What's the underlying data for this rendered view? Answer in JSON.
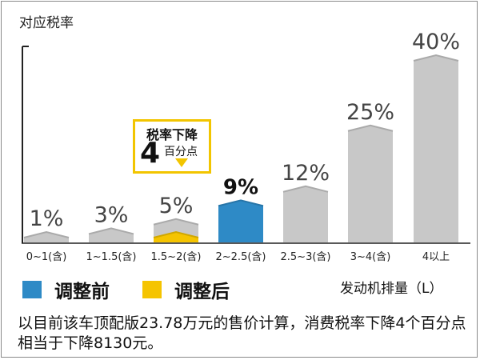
{
  "chart_data": {
    "type": "bar",
    "ylabel": "对应税率",
    "xlabel": "发动机排量（L）",
    "categories": [
      "0~1(含)",
      "1~1.5(含)",
      "1.5~2(含)",
      "2~2.5(含)",
      "2.5~3(含)",
      "3~4(含)",
      "4以上"
    ],
    "value_labels": [
      "1%",
      "3%",
      "5%",
      "9%",
      "12%",
      "25%",
      "40%"
    ],
    "series": [
      {
        "name": "调整前",
        "color": "#2e8ac6",
        "values": [
          1,
          3,
          5,
          9,
          12,
          25,
          40
        ]
      },
      {
        "name": "调整后",
        "color": "#f5c400",
        "values": [
          1,
          3,
          1,
          9,
          12,
          25,
          40
        ]
      }
    ],
    "ylim": [
      0,
      40
    ],
    "bar_color_default": "#c8c8c8",
    "highlight_before_category": "2~2.5(含)",
    "highlight_after_category": "1.5~2(含)",
    "annotation": {
      "title": "税率下降",
      "number": "4",
      "unit": "百分点",
      "color": "#f2c500"
    }
  },
  "legend": {
    "before_label": "调整前",
    "after_label": "调整后",
    "before_color": "#2e8ac6",
    "after_color": "#f5c400"
  },
  "footnote": "以目前该车顶配版23.78万元的售价计算，消费税率下降4个百分点相当于下降8130元。"
}
